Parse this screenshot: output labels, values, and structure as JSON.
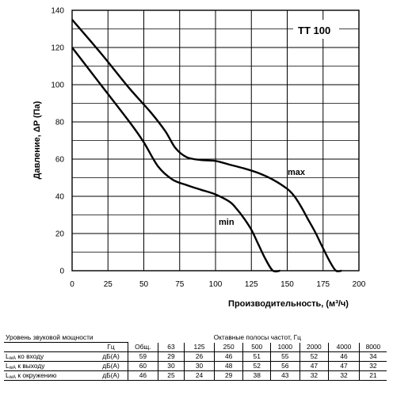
{
  "chart_data": {
    "type": "line",
    "title": "TT 100",
    "xlabel": "Производительность, (м³/ч)",
    "ylabel": "Давление, ΔP (Па)",
    "xlim": [
      0,
      200
    ],
    "ylim": [
      0,
      140
    ],
    "x_ticks": [
      "0",
      "25",
      "50",
      "75",
      "100",
      "125",
      "150",
      "175",
      "200"
    ],
    "y_ticks": [
      "0",
      "20",
      "40",
      "60",
      "80",
      "100",
      "120",
      "140"
    ],
    "grid": true,
    "series": [
      {
        "name": "max",
        "x": [
          0,
          20,
          40,
          55,
          65,
          72,
          80,
          90,
          100,
          110,
          120,
          130,
          140,
          150,
          155,
          160,
          165,
          170,
          175,
          180,
          184,
          188
        ],
        "y": [
          135,
          117,
          98,
          85,
          75,
          66,
          61,
          59.5,
          59,
          57,
          55,
          52.5,
          49,
          44,
          40,
          34,
          27,
          20,
          12,
          4.5,
          0,
          0
        ]
      },
      {
        "name": "min",
        "x": [
          0,
          20,
          40,
          50,
          60,
          70,
          80,
          90,
          100,
          110,
          115,
          120,
          125,
          130,
          135,
          140,
          145
        ],
        "y": [
          120,
          100,
          80,
          69,
          56,
          49,
          46,
          43.5,
          41,
          37,
          33,
          28,
          22,
          14,
          6,
          0,
          0
        ]
      }
    ]
  },
  "sound_table": {
    "title_left": "Уровень звуковой мощности",
    "title_right": "Октавные полосы частот, Гц",
    "unit_header": "Гц",
    "columns": [
      "Общ.",
      "63",
      "125",
      "250",
      "500",
      "1000",
      "2000",
      "4000",
      "8000"
    ],
    "rows": [
      {
        "sub": "wA",
        "suffix": " ко входу",
        "unit": "дБ(А)",
        "values": [
          "59",
          "29",
          "26",
          "46",
          "51",
          "55",
          "52",
          "46",
          "34"
        ]
      },
      {
        "sub": "wA",
        "suffix": " к выходу",
        "unit": "дБ(А)",
        "values": [
          "60",
          "30",
          "30",
          "48",
          "52",
          "56",
          "47",
          "47",
          "32"
        ]
      },
      {
        "sub": "wA",
        "suffix": " к окружению",
        "unit": "дБ(А)",
        "values": [
          "46",
          "25",
          "24",
          "29",
          "38",
          "43",
          "32",
          "32",
          "21"
        ]
      }
    ],
    "row_prefix": "L"
  }
}
